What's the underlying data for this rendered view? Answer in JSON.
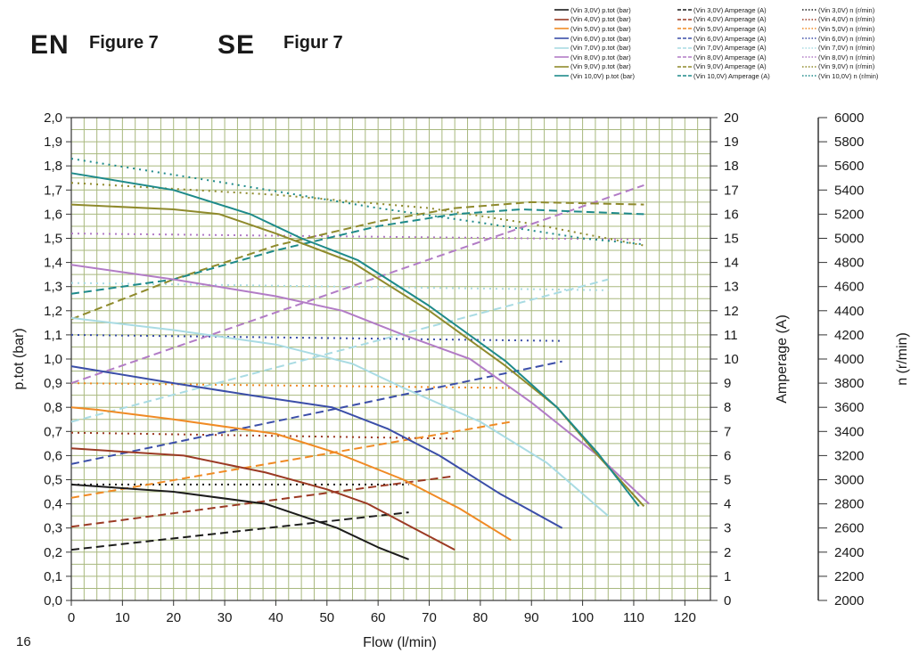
{
  "header": {
    "en_code": "EN",
    "en_figure": "Figure 7",
    "se_code": "SE",
    "se_figure": "Figur 7",
    "page_number": "16"
  },
  "colors": {
    "grid": "#a8b87e",
    "axis": "#333333",
    "series": {
      "3.0": "#1c1c1c",
      "4.0": "#9b3a24",
      "5.0": "#f08a24",
      "6.0": "#3b4ea8",
      "7.0": "#a9dbe3",
      "8.0": "#b27cc6",
      "9.0": "#8f8a2c",
      "10.0": "#1e8a8a"
    }
  },
  "legend": [
    [
      "(Vin 3,0V) p.tot (bar)",
      "(Vin 3,0V) Amperage (A)",
      "(Vin 3,0V) n (r/min)"
    ],
    [
      "(Vin 4,0V) p.tot (bar)",
      "(Vin 4,0V) Amperage (A)",
      "(Vin 4,0V) n (r/min)"
    ],
    [
      "(Vin 5,0V) p.tot (bar)",
      "(Vin 5,0V) Amperage (A)",
      "(Vin 5,0V) n (r/min)"
    ],
    [
      "(Vin 6,0V) p.tot (bar)",
      "(Vin 6,0V) Amperage (A)",
      "(Vin 6,0V) n (r/min)"
    ],
    [
      "(Vin 7,0V) p.tot (bar)",
      "(Vin 7,0V) Amperage (A)",
      "(Vin 7,0V) n (r/min)"
    ],
    [
      "(Vin 8,0V) p.tot (bar)",
      "(Vin 8,0V) Amperage (A)",
      "(Vin 8,0V) n (r/min)"
    ],
    [
      "(Vin 9,0V) p.tot (bar)",
      "(Vin 9,0V) Amperage (A)",
      "(Vin 9,0V) n (r/min)"
    ],
    [
      "(Vin 10,0V) p.tot (bar)",
      "(Vin 10,0V) Amperage (A)",
      "(Vin 10,0V) n (r/min)"
    ]
  ],
  "chart_data": {
    "type": "line",
    "grid": true,
    "legend_position": "top-right",
    "xlabel": "Flow (l/min)",
    "ylabel": "p.tot (bar)",
    "y2label": "Amperage (A)",
    "y3label": "n (r/min)",
    "xlim": [
      0,
      125
    ],
    "ylim": [
      0,
      2.0
    ],
    "y2lim": [
      0,
      20
    ],
    "y3lim": [
      2000,
      6000
    ],
    "x_ticks": [
      "0",
      "10",
      "20",
      "30",
      "40",
      "50",
      "60",
      "70",
      "80",
      "90",
      "100",
      "110",
      "120"
    ],
    "y_ticks": [
      "0,0",
      "0,1",
      "0,2",
      "0,3",
      "0,4",
      "0,5",
      "0,6",
      "0,7",
      "0,8",
      "0,9",
      "1,0",
      "1,1",
      "1,2",
      "1,3",
      "1,4",
      "1,5",
      "1,6",
      "1,7",
      "1,8",
      "1,9",
      "2,0"
    ],
    "y2_ticks": [
      "0",
      "1",
      "2",
      "3",
      "4",
      "5",
      "6",
      "7",
      "8",
      "9",
      "10",
      "11",
      "12",
      "13",
      "14",
      "15",
      "16",
      "17",
      "18",
      "19",
      "20"
    ],
    "y3_ticks": [
      "2000",
      "2200",
      "2400",
      "2600",
      "2800",
      "3000",
      "3200",
      "3400",
      "3600",
      "3800",
      "4000",
      "4200",
      "4400",
      "4600",
      "4800",
      "5000",
      "5200",
      "5400",
      "5600",
      "5800",
      "6000"
    ],
    "series": [
      {
        "name": "(Vin 3,0V) p.tot (bar)",
        "voltage": "3.0",
        "kind": "pressure",
        "axis": "left",
        "x": [
          0,
          20,
          38,
          52,
          60,
          66
        ],
        "y": [
          0.48,
          0.45,
          0.4,
          0.3,
          0.22,
          0.17
        ]
      },
      {
        "name": "(Vin 4,0V) p.tot (bar)",
        "voltage": "4.0",
        "kind": "pressure",
        "axis": "left",
        "x": [
          0,
          22,
          38,
          50,
          58,
          66,
          75
        ],
        "y": [
          0.63,
          0.6,
          0.53,
          0.46,
          0.4,
          0.31,
          0.21
        ]
      },
      {
        "name": "(Vin 5,0V) p.tot (bar)",
        "voltage": "5.0",
        "kind": "pressure",
        "axis": "left",
        "x": [
          0,
          5,
          20,
          40,
          52,
          65,
          76,
          86
        ],
        "y": [
          0.8,
          0.79,
          0.75,
          0.69,
          0.61,
          0.5,
          0.38,
          0.25
        ]
      },
      {
        "name": "(Vin 6,0V) p.tot (bar)",
        "voltage": "6.0",
        "kind": "pressure",
        "axis": "left",
        "x": [
          0,
          20,
          35,
          51,
          62,
          72,
          84,
          96
        ],
        "y": [
          0.97,
          0.9,
          0.85,
          0.8,
          0.71,
          0.6,
          0.44,
          0.3
        ]
      },
      {
        "name": "(Vin 7,0V) p.tot (bar)",
        "voltage": "7.0",
        "kind": "pressure",
        "axis": "left",
        "x": [
          0,
          20,
          40,
          55,
          65,
          80,
          93,
          105
        ],
        "y": [
          1.17,
          1.12,
          1.06,
          0.98,
          0.88,
          0.74,
          0.57,
          0.35
        ]
      },
      {
        "name": "(Vin 8,0V) p.tot (bar)",
        "voltage": "8.0",
        "kind": "pressure",
        "axis": "left",
        "x": [
          0,
          20,
          40,
          53,
          65,
          78,
          90,
          103,
          113
        ],
        "y": [
          1.39,
          1.33,
          1.26,
          1.2,
          1.1,
          1.0,
          0.82,
          0.6,
          0.4
        ]
      },
      {
        "name": "(Vin 9,0V) p.tot (bar)",
        "voltage": "9.0",
        "kind": "pressure",
        "axis": "left",
        "x": [
          0,
          20,
          29,
          40,
          55,
          70,
          85,
          95,
          103,
          112
        ],
        "y": [
          1.64,
          1.62,
          1.6,
          1.52,
          1.4,
          1.2,
          0.97,
          0.8,
          0.6,
          0.39
        ]
      },
      {
        "name": "(Vin 10,0V) p.tot (bar)",
        "voltage": "10.0",
        "kind": "pressure",
        "axis": "left",
        "x": [
          0,
          20,
          35,
          45,
          56,
          70,
          85,
          95,
          103,
          111
        ],
        "y": [
          1.77,
          1.7,
          1.6,
          1.5,
          1.41,
          1.22,
          0.99,
          0.8,
          0.61,
          0.39
        ]
      },
      {
        "name": "(Vin 3,0V) Amperage (A)",
        "voltage": "3.0",
        "kind": "current",
        "axis": "right",
        "x": [
          0,
          66
        ],
        "y": [
          2.1,
          3.65
        ]
      },
      {
        "name": "(Vin 4,0V) Amperage (A)",
        "voltage": "4.0",
        "kind": "current",
        "axis": "right",
        "x": [
          0,
          75
        ],
        "y": [
          3.05,
          5.15
        ]
      },
      {
        "name": "(Vin 5,0V) Amperage (A)",
        "voltage": "5.0",
        "kind": "current",
        "axis": "right",
        "x": [
          0,
          86
        ],
        "y": [
          4.25,
          7.4
        ]
      },
      {
        "name": "(Vin 6,0V) Amperage (A)",
        "voltage": "6.0",
        "kind": "current",
        "axis": "right",
        "x": [
          0,
          96
        ],
        "y": [
          5.65,
          9.9
        ]
      },
      {
        "name": "(Vin 7,0V) Amperage (A)",
        "voltage": "7.0",
        "kind": "current",
        "axis": "right",
        "x": [
          0,
          105
        ],
        "y": [
          7.4,
          13.3
        ]
      },
      {
        "name": "(Vin 8,0V) Amperage (A)",
        "voltage": "8.0",
        "kind": "current",
        "axis": "right",
        "x": [
          0,
          112
        ],
        "y": [
          9.0,
          17.2
        ]
      },
      {
        "name": "(Vin 9,0V) Amperage (A)",
        "voltage": "9.0",
        "kind": "current",
        "axis": "right",
        "x": [
          0,
          20,
          40,
          60,
          75,
          90,
          112
        ],
        "y": [
          11.65,
          13.3,
          14.7,
          15.7,
          16.25,
          16.5,
          16.4
        ]
      },
      {
        "name": "(Vin 10,0V) Amperage (A)",
        "voltage": "10.0",
        "kind": "current",
        "axis": "right",
        "x": [
          0,
          20,
          40,
          60,
          75,
          88,
          112
        ],
        "y": [
          12.7,
          13.3,
          14.5,
          15.5,
          16.0,
          16.2,
          16.0
        ]
      },
      {
        "name": "(Vin 3,0V) n (r/min)",
        "voltage": "3.0",
        "kind": "speed",
        "axis": "right2",
        "x": [
          0,
          66
        ],
        "y": [
          2960,
          2960
        ]
      },
      {
        "name": "(Vin 4,0V) n (r/min)",
        "voltage": "4.0",
        "kind": "speed",
        "axis": "right2",
        "x": [
          0,
          75
        ],
        "y": [
          3390,
          3340
        ]
      },
      {
        "name": "(Vin 5,0V) n (r/min)",
        "voltage": "5.0",
        "kind": "speed",
        "axis": "right2",
        "x": [
          0,
          86
        ],
        "y": [
          3800,
          3760
        ]
      },
      {
        "name": "(Vin 6,0V) n (r/min)",
        "voltage": "6.0",
        "kind": "speed",
        "axis": "right2",
        "x": [
          0,
          96
        ],
        "y": [
          4200,
          4150
        ]
      },
      {
        "name": "(Vin 7,0V) n (r/min)",
        "voltage": "7.0",
        "kind": "speed",
        "axis": "right2",
        "x": [
          0,
          105
        ],
        "y": [
          4630,
          4570
        ]
      },
      {
        "name": "(Vin 8,0V) n (r/min)",
        "voltage": "8.0",
        "kind": "speed",
        "axis": "right2",
        "x": [
          0,
          112
        ],
        "y": [
          5040,
          4990
        ]
      },
      {
        "name": "(Vin 9,0V) n (r/min)",
        "voltage": "9.0",
        "kind": "speed",
        "axis": "right2",
        "x": [
          0,
          40,
          70,
          90,
          112
        ],
        "y": [
          5460,
          5360,
          5250,
          5120,
          4940
        ]
      },
      {
        "name": "(Vin 10,0V) n (r/min)",
        "voltage": "10.0",
        "kind": "speed",
        "axis": "right2",
        "x": [
          0,
          30,
          60,
          80,
          100,
          112
        ],
        "y": [
          5660,
          5460,
          5250,
          5130,
          5000,
          4950
        ]
      }
    ]
  }
}
